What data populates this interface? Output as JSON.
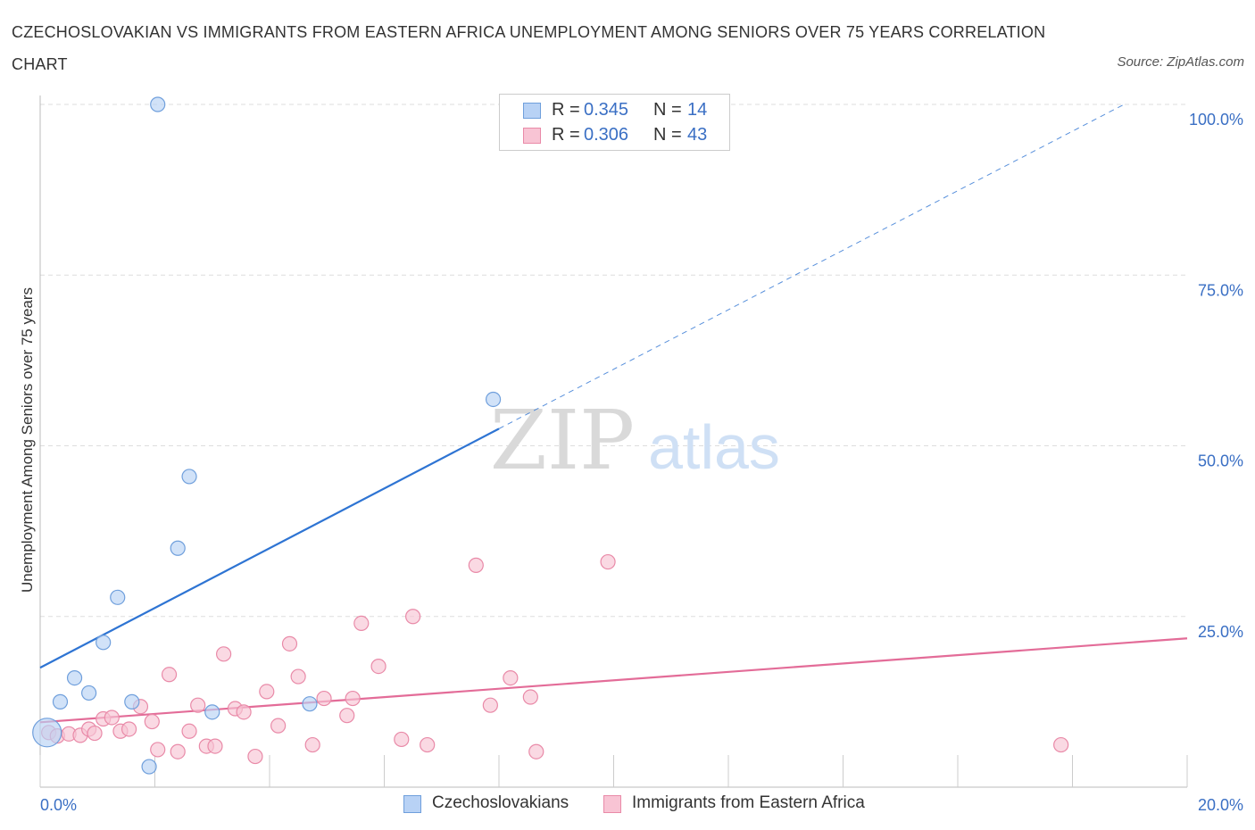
{
  "header": {
    "title": "CZECHOSLOVAKIAN VS IMMIGRANTS FROM EASTERN AFRICA UNEMPLOYMENT AMONG SENIORS OVER 75 YEARS CORRELATION CHART",
    "source": "Source: ZipAtlas.com"
  },
  "legend": {
    "r_label": "R =",
    "n_label": "N =",
    "series": [
      {
        "name": "Czechoslovakians",
        "r": "0.345",
        "n": "14"
      },
      {
        "name": "Immigrants from Eastern Africa",
        "r": "0.306",
        "n": "43"
      }
    ]
  },
  "watermark": {
    "zip": "ZIP",
    "atlas": "atlas"
  },
  "colors": {
    "blue_fill": "#b8d2f5",
    "blue_stroke": "#6f9fdc",
    "blue_line": "#2e74d3",
    "pink_fill": "#f8c4d4",
    "pink_stroke": "#e98aa8",
    "pink_line": "#e36c98",
    "tick_label": "#3a6fc4",
    "grid": "#dddddd"
  },
  "chart_data": {
    "type": "scatter",
    "title": "CZECHOSLOVAKIAN VS IMMIGRANTS FROM EASTERN AFRICA UNEMPLOYMENT AMONG SENIORS OVER 75 YEARS CORRELATION CHART",
    "xlabel": "",
    "ylabel": "Unemployment Among Seniors over 75 years",
    "xlim": [
      0,
      20
    ],
    "ylim": [
      0,
      100
    ],
    "x_tick_labels": [
      "0.0%",
      "20.0%"
    ],
    "y_tick_labels": [
      "25.0%",
      "50.0%",
      "75.0%",
      "100.0%"
    ],
    "y_ticks": [
      25,
      50,
      75,
      100
    ],
    "grid": true,
    "legend_position": "top-center",
    "series": [
      {
        "name": "Czechoslovakians",
        "color": "blue",
        "r": 0.345,
        "n": 14,
        "points": [
          [
            0.12,
            8.0
          ],
          [
            0.35,
            12.5
          ],
          [
            0.6,
            16.0
          ],
          [
            0.85,
            13.8
          ],
          [
            1.1,
            21.2
          ],
          [
            1.35,
            27.8
          ],
          [
            1.6,
            12.5
          ],
          [
            1.9,
            3.0
          ],
          [
            2.05,
            100.0
          ],
          [
            2.4,
            35.0
          ],
          [
            2.6,
            45.5
          ],
          [
            3.0,
            11.0
          ],
          [
            4.7,
            12.2
          ],
          [
            7.9,
            56.8
          ]
        ],
        "trend": {
          "x0": 0,
          "y0": 17.5,
          "x1": 8.0,
          "y1": 52.5,
          "dashed_to_x": 18.9,
          "dashed_to_y": 100
        }
      },
      {
        "name": "Immigrants from Eastern Africa",
        "color": "pink",
        "r": 0.306,
        "n": 43,
        "points": [
          [
            0.15,
            8.0
          ],
          [
            0.3,
            7.5
          ],
          [
            0.5,
            7.8
          ],
          [
            0.7,
            7.6
          ],
          [
            0.85,
            8.5
          ],
          [
            0.95,
            7.9
          ],
          [
            1.1,
            10.0
          ],
          [
            1.25,
            10.2
          ],
          [
            1.4,
            8.2
          ],
          [
            1.55,
            8.5
          ],
          [
            1.75,
            11.8
          ],
          [
            1.95,
            9.6
          ],
          [
            2.05,
            5.5
          ],
          [
            2.25,
            16.5
          ],
          [
            2.4,
            5.2
          ],
          [
            2.6,
            8.2
          ],
          [
            2.75,
            12.0
          ],
          [
            2.9,
            6.0
          ],
          [
            3.05,
            6.0
          ],
          [
            3.2,
            19.5
          ],
          [
            3.4,
            11.5
          ],
          [
            3.55,
            11.0
          ],
          [
            3.75,
            4.5
          ],
          [
            3.95,
            14.0
          ],
          [
            4.15,
            9.0
          ],
          [
            4.35,
            21.0
          ],
          [
            4.5,
            16.2
          ],
          [
            4.75,
            6.2
          ],
          [
            4.95,
            13.0
          ],
          [
            5.35,
            10.5
          ],
          [
            5.45,
            13.0
          ],
          [
            5.6,
            24.0
          ],
          [
            5.9,
            17.7
          ],
          [
            6.3,
            7.0
          ],
          [
            6.5,
            25.0
          ],
          [
            6.75,
            6.2
          ],
          [
            7.6,
            32.5
          ],
          [
            7.85,
            12.0
          ],
          [
            8.2,
            16.0
          ],
          [
            8.55,
            13.2
          ],
          [
            8.65,
            5.2
          ],
          [
            9.9,
            33.0
          ],
          [
            17.8,
            6.2
          ]
        ],
        "trend": {
          "x0": 0,
          "y0": 9.5,
          "x1": 20,
          "y1": 21.8
        }
      }
    ]
  }
}
